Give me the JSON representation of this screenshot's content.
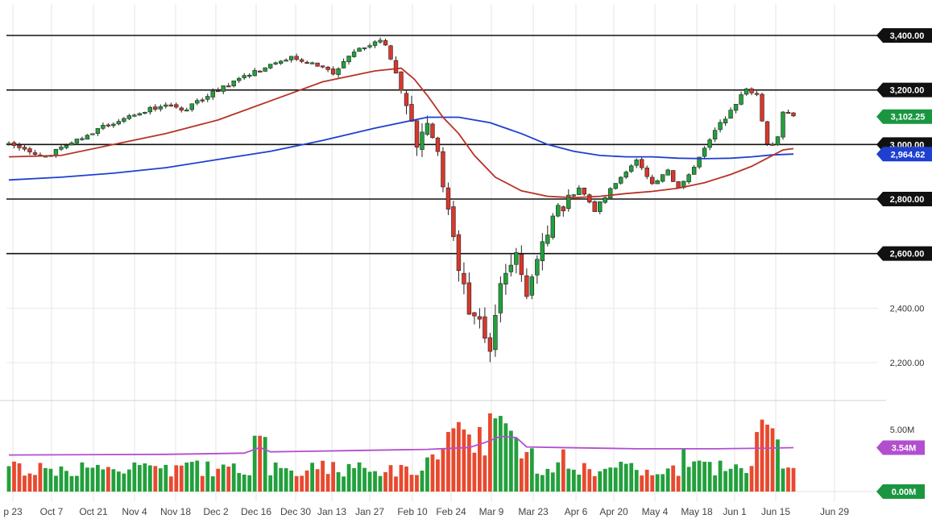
{
  "chart_data": {
    "type": "candlestick",
    "price_axis": {
      "ylim": [
        2150,
        3450
      ],
      "ticks": [
        "3,400.00",
        "3,200.00",
        "3,000.00",
        "2,800.00",
        "2,600.00",
        "2,400.00",
        "2,200.00"
      ],
      "tick_values": [
        3400,
        3200,
        3000,
        2800,
        2600,
        2400,
        2200
      ],
      "highlighted_levels": [
        3400,
        3200,
        3000,
        2800,
        2600
      ]
    },
    "price_badges": [
      {
        "label": "3,102.25",
        "value": 3102.25,
        "color": "#1a9641"
      },
      {
        "label": "2,964.62",
        "value": 2964.62,
        "color": "#1e3fd0"
      }
    ],
    "volume_axis": {
      "ylim": [
        0,
        6.5
      ],
      "ticks": [
        "5.00M",
        "0.00M"
      ],
      "tick_values": [
        5.0,
        0.0
      ],
      "average_badge": {
        "label": "3.54M",
        "value": 3.54,
        "color": "#b24fcf"
      }
    },
    "x_ticks": [
      "p 23",
      "Oct 7",
      "Oct 21",
      "Nov 4",
      "Nov 18",
      "Dec 2",
      "Dec 16",
      "Dec 30",
      "Jan 13",
      "Jan 27",
      "Feb 10",
      "Feb 24",
      "Mar 9",
      "Mar 23",
      "Apr 6",
      "Apr 20",
      "May 4",
      "May 18",
      "Jun 1",
      "Jun 15",
      "Jun 29"
    ],
    "anchors": [
      [
        0,
        3000
      ],
      [
        10,
        2960
      ],
      [
        16,
        2965
      ],
      [
        24,
        3010
      ],
      [
        35,
        3060
      ],
      [
        50,
        3120
      ],
      [
        62,
        3150
      ],
      [
        66,
        3120
      ],
      [
        76,
        3180
      ],
      [
        90,
        3250
      ],
      [
        108,
        3320
      ],
      [
        116,
        3300
      ],
      [
        124,
        3260
      ],
      [
        132,
        3340
      ],
      [
        142,
        3385
      ],
      [
        144,
        3370
      ],
      [
        146,
        3320
      ],
      [
        152,
        3150
      ],
      [
        156,
        3000
      ],
      [
        160,
        3100
      ],
      [
        164,
        2980
      ],
      [
        168,
        2750
      ],
      [
        172,
        2550
      ],
      [
        176,
        2400
      ],
      [
        181,
        2350
      ],
      [
        184,
        2250
      ],
      [
        188,
        2500
      ],
      [
        194,
        2580
      ],
      [
        198,
        2460
      ],
      [
        204,
        2620
      ],
      [
        210,
        2760
      ],
      [
        218,
        2840
      ],
      [
        224,
        2760
      ],
      [
        232,
        2860
      ],
      [
        240,
        2940
      ],
      [
        246,
        2860
      ],
      [
        252,
        2900
      ],
      [
        256,
        2840
      ],
      [
        262,
        2920
      ],
      [
        270,
        3050
      ],
      [
        278,
        3150
      ],
      [
        282,
        3210
      ],
      [
        286,
        3180
      ],
      [
        290,
        3000
      ],
      [
        293,
        2990
      ],
      [
        296,
        3120
      ],
      [
        300,
        3102
      ]
    ],
    "sma_fast": [
      [
        0,
        2955
      ],
      [
        20,
        2960
      ],
      [
        40,
        3000
      ],
      [
        60,
        3040
      ],
      [
        80,
        3090
      ],
      [
        100,
        3160
      ],
      [
        120,
        3230
      ],
      [
        140,
        3270
      ],
      [
        150,
        3280
      ],
      [
        155,
        3240
      ],
      [
        160,
        3180
      ],
      [
        166,
        3100
      ],
      [
        172,
        3040
      ],
      [
        178,
        2960
      ],
      [
        186,
        2880
      ],
      [
        196,
        2830
      ],
      [
        206,
        2810
      ],
      [
        216,
        2805
      ],
      [
        226,
        2810
      ],
      [
        236,
        2820
      ],
      [
        246,
        2828
      ],
      [
        256,
        2840
      ],
      [
        266,
        2860
      ],
      [
        276,
        2890
      ],
      [
        284,
        2920
      ],
      [
        290,
        2950
      ],
      [
        296,
        2980
      ],
      [
        300,
        2985
      ]
    ],
    "sma_slow": [
      [
        0,
        2870
      ],
      [
        20,
        2880
      ],
      [
        40,
        2895
      ],
      [
        60,
        2915
      ],
      [
        80,
        2945
      ],
      [
        100,
        2975
      ],
      [
        120,
        3015
      ],
      [
        140,
        3060
      ],
      [
        160,
        3100
      ],
      [
        172,
        3100
      ],
      [
        184,
        3080
      ],
      [
        196,
        3040
      ],
      [
        206,
        3000
      ],
      [
        216,
        2975
      ],
      [
        226,
        2960
      ],
      [
        236,
        2955
      ],
      [
        246,
        2955
      ],
      [
        256,
        2950
      ],
      [
        266,
        2948
      ],
      [
        276,
        2950
      ],
      [
        284,
        2955
      ],
      [
        292,
        2962
      ],
      [
        300,
        2965
      ]
    ],
    "volume_avg": [
      [
        0,
        2.95
      ],
      [
        60,
        3.0
      ],
      [
        90,
        3.1
      ],
      [
        96,
        3.55
      ],
      [
        100,
        3.2
      ],
      [
        130,
        3.3
      ],
      [
        160,
        3.4
      ],
      [
        176,
        3.55
      ],
      [
        182,
        3.95
      ],
      [
        188,
        4.45
      ],
      [
        194,
        4.35
      ],
      [
        198,
        3.6
      ],
      [
        210,
        3.55
      ],
      [
        240,
        3.45
      ],
      [
        270,
        3.45
      ],
      [
        290,
        3.5
      ],
      [
        300,
        3.54
      ]
    ],
    "volume_spikes": [
      [
        95,
        4.5
      ],
      [
        97,
        4.4
      ],
      [
        168,
        4.8
      ],
      [
        170,
        5.1
      ],
      [
        172,
        5.6
      ],
      [
        174,
        5.0
      ],
      [
        176,
        4.6
      ],
      [
        180,
        5.2
      ],
      [
        184,
        6.3
      ],
      [
        186,
        5.9
      ],
      [
        188,
        6.1
      ],
      [
        190,
        5.5
      ],
      [
        192,
        4.9
      ],
      [
        194,
        4.3
      ],
      [
        212,
        3.4
      ],
      [
        258,
        3.5
      ],
      [
        286,
        4.8
      ],
      [
        288,
        5.8
      ],
      [
        290,
        5.4
      ],
      [
        292,
        5.1
      ],
      [
        294,
        4.2
      ]
    ],
    "series": [
      {
        "name": "price candles",
        "type": "candlestick",
        "up_color": "#22a03c",
        "down_color": "#d9372b"
      },
      {
        "name": "fast moving average",
        "type": "line",
        "color": "#c0392b"
      },
      {
        "name": "slow moving average",
        "type": "line",
        "color": "#1e3fd0"
      },
      {
        "name": "volume",
        "type": "bar"
      },
      {
        "name": "volume average",
        "type": "line",
        "color": "#b24fcf"
      }
    ],
    "grid": true,
    "legend": "none",
    "title": ""
  }
}
